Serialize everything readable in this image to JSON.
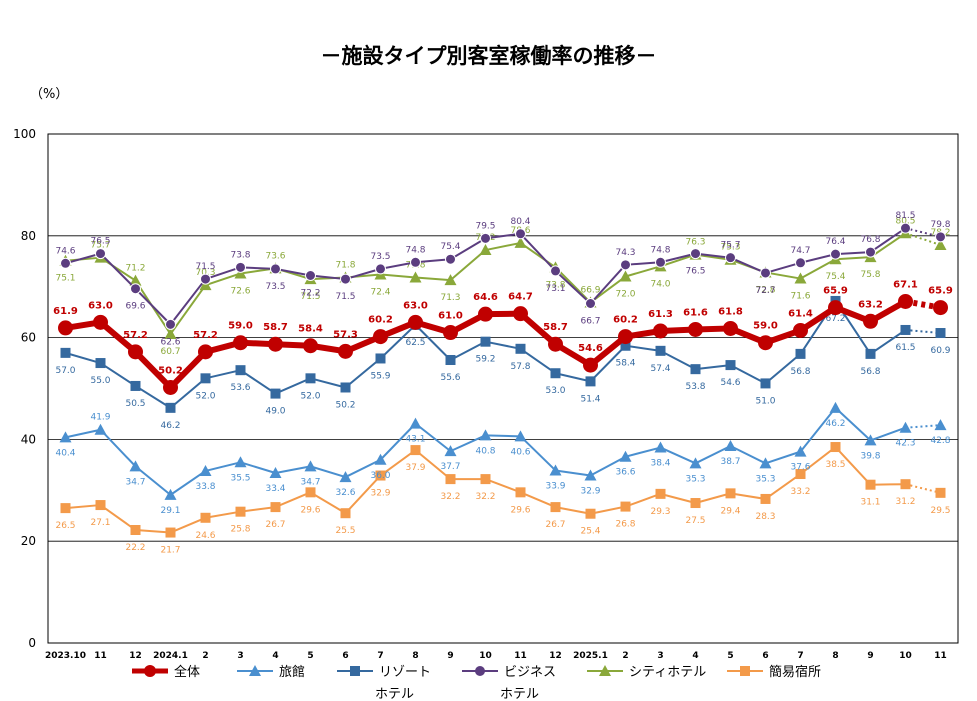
{
  "chart_data": {
    "type": "line",
    "title": "－施設タイプ別客室稼働率の推移－",
    "ylabel": "（%）",
    "ylim": [
      0,
      100
    ],
    "yticks": [
      0,
      20,
      40,
      60,
      80,
      100
    ],
    "grid": true,
    "legend_position": "bottom",
    "categories": [
      "2023.10",
      "11",
      "12",
      "2024.1",
      "2",
      "3",
      "4",
      "5",
      "6",
      "7",
      "8",
      "9",
      "10",
      "11",
      "12",
      "2025.1",
      "2",
      "3",
      "4",
      "5",
      "6",
      "7",
      "8",
      "9",
      "10",
      "11"
    ],
    "series": [
      {
        "name": "全体",
        "color": "#c00000",
        "marker": "circle",
        "thick": true,
        "values": [
          61.9,
          63.0,
          57.2,
          50.2,
          57.2,
          59.0,
          58.7,
          58.4,
          57.3,
          60.2,
          63.0,
          61.0,
          64.6,
          64.7,
          58.7,
          54.6,
          60.2,
          61.3,
          61.6,
          61.8,
          59.0,
          61.4,
          65.9,
          63.2,
          67.1,
          65.9
        ]
      },
      {
        "name": "旅館",
        "color": "#4a8fcf",
        "marker": "triangle",
        "values": [
          40.4,
          41.9,
          34.7,
          29.1,
          33.8,
          35.5,
          33.4,
          34.7,
          32.6,
          36.0,
          43.1,
          37.7,
          40.8,
          40.6,
          33.9,
          32.9,
          36.6,
          38.4,
          35.3,
          38.7,
          35.3,
          37.6,
          46.2,
          39.8,
          42.3,
          42.8
        ]
      },
      {
        "name": "リゾート\nホテル",
        "color": "#35699f",
        "marker": "square",
        "values": [
          57.0,
          55.0,
          50.5,
          46.2,
          52.0,
          53.6,
          49.0,
          52.0,
          50.2,
          55.9,
          62.5,
          55.6,
          59.2,
          57.8,
          53.0,
          51.4,
          58.4,
          57.4,
          53.8,
          54.6,
          51.0,
          56.8,
          67.2,
          56.8,
          61.5,
          60.9
        ]
      },
      {
        "name": "ビジネス\nホテル",
        "color": "#5b3d7f",
        "marker": "circle",
        "values": [
          74.6,
          76.5,
          69.6,
          62.6,
          71.5,
          73.8,
          73.5,
          72.2,
          71.5,
          73.5,
          74.8,
          75.4,
          79.5,
          80.4,
          73.1,
          66.7,
          74.3,
          74.8,
          76.5,
          75.7,
          72.7,
          74.7,
          76.4,
          76.8,
          81.5,
          79.8
        ]
      },
      {
        "name": "シティホテル",
        "color": "#8aa83a",
        "marker": "triangle",
        "values": [
          75.1,
          75.7,
          71.2,
          60.7,
          70.3,
          72.6,
          73.6,
          71.5,
          71.8,
          72.4,
          71.8,
          71.3,
          77.2,
          78.6,
          73.8,
          66.9,
          72.0,
          74.0,
          76.3,
          75.3,
          72.8,
          71.6,
          75.4,
          75.8,
          80.5,
          78.2
        ]
      },
      {
        "name": "簡易宿所",
        "color": "#f39a4a",
        "marker": "square",
        "values": [
          26.5,
          27.1,
          22.2,
          21.7,
          24.6,
          25.8,
          26.7,
          29.6,
          25.5,
          32.9,
          37.9,
          32.2,
          32.2,
          29.6,
          26.7,
          25.4,
          26.8,
          29.3,
          27.5,
          29.4,
          28.3,
          33.2,
          38.5,
          31.1,
          31.2,
          29.5
        ]
      }
    ],
    "last_segment_dotted": true
  }
}
